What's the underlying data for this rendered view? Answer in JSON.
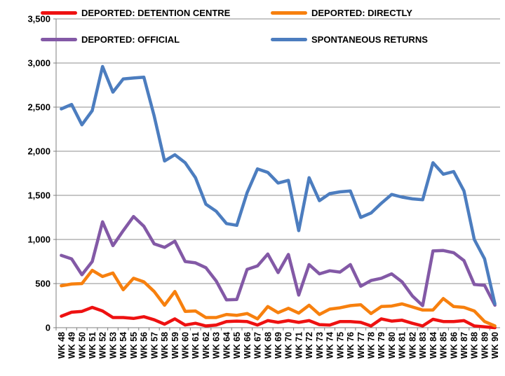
{
  "chart_data": {
    "type": "line",
    "title": "",
    "xlabel": "",
    "ylabel": "",
    "ylim": [
      0,
      3500
    ],
    "yticks": [
      "0",
      "500",
      "1,000",
      "1,500",
      "2,000",
      "2,500",
      "3,000",
      "3,500"
    ],
    "ytick_values": [
      0,
      500,
      1000,
      1500,
      2000,
      2500,
      3000,
      3500
    ],
    "categories": [
      "WK 48",
      "WK 49",
      "WK 50",
      "WK 51",
      "WK 52",
      "WK 53",
      "WK 54",
      "WK 55",
      "WK 56",
      "WK 57",
      "WK 58",
      "WK 59",
      "WK 60",
      "WK 61",
      "WK 62",
      "WK 63",
      "WK 64",
      "WK 65",
      "WK 66",
      "WK 67",
      "WK 68",
      "WK 69",
      "WK 70",
      "WK 71",
      "WK 72",
      "WK 73",
      "WK 74",
      "WK 75",
      "WK 76",
      "WK 77",
      "WK 78",
      "WK 79",
      "WK 80",
      "WK 81",
      "WK 82",
      "WK 83",
      "WK 84",
      "WK 85",
      "WK 86",
      "WK 87",
      "WK 88",
      "WK 89",
      "WK 90"
    ],
    "grid": "horizontal",
    "legend_position": "top",
    "series": [
      {
        "name": "DEPORTED: DETENTION CENTRE",
        "color": "#ee1111",
        "values": [
          130,
          175,
          185,
          230,
          190,
          115,
          115,
          105,
          125,
          90,
          40,
          100,
          30,
          50,
          20,
          30,
          70,
          75,
          70,
          30,
          80,
          60,
          80,
          60,
          80,
          35,
          30,
          70,
          70,
          60,
          20,
          100,
          75,
          85,
          50,
          20,
          95,
          70,
          70,
          80,
          20,
          10,
          0
        ]
      },
      {
        "name": "DEPORTED: DIRECTLY",
        "color": "#f7800e",
        "values": [
          475,
          495,
          500,
          650,
          580,
          620,
          430,
          560,
          520,
          410,
          255,
          410,
          185,
          190,
          115,
          115,
          150,
          140,
          160,
          100,
          240,
          170,
          220,
          165,
          255,
          150,
          210,
          225,
          250,
          260,
          160,
          240,
          245,
          270,
          235,
          200,
          200,
          330,
          240,
          230,
          190,
          70,
          20
        ]
      },
      {
        "name": "DEPORTED: OFFICIAL",
        "color": "#8359a6",
        "values": [
          820,
          780,
          600,
          750,
          1200,
          930,
          1100,
          1260,
          1150,
          950,
          910,
          980,
          750,
          735,
          680,
          530,
          315,
          320,
          660,
          700,
          835,
          625,
          830,
          370,
          715,
          610,
          645,
          630,
          715,
          470,
          535,
          560,
          610,
          520,
          360,
          250,
          870,
          875,
          850,
          760,
          490,
          480,
          255
        ]
      },
      {
        "name": "SPONTANEOUS RETURNS",
        "color": "#4c7dbf",
        "values": [
          2480,
          2530,
          2300,
          2460,
          2960,
          2670,
          2820,
          2830,
          2840,
          2400,
          1890,
          1960,
          1870,
          1700,
          1400,
          1320,
          1180,
          1160,
          1530,
          1800,
          1760,
          1640,
          1670,
          1100,
          1700,
          1440,
          1520,
          1540,
          1550,
          1250,
          1300,
          1410,
          1510,
          1480,
          1460,
          1450,
          1870,
          1740,
          1770,
          1550,
          1000,
          780,
          270
        ]
      }
    ]
  }
}
